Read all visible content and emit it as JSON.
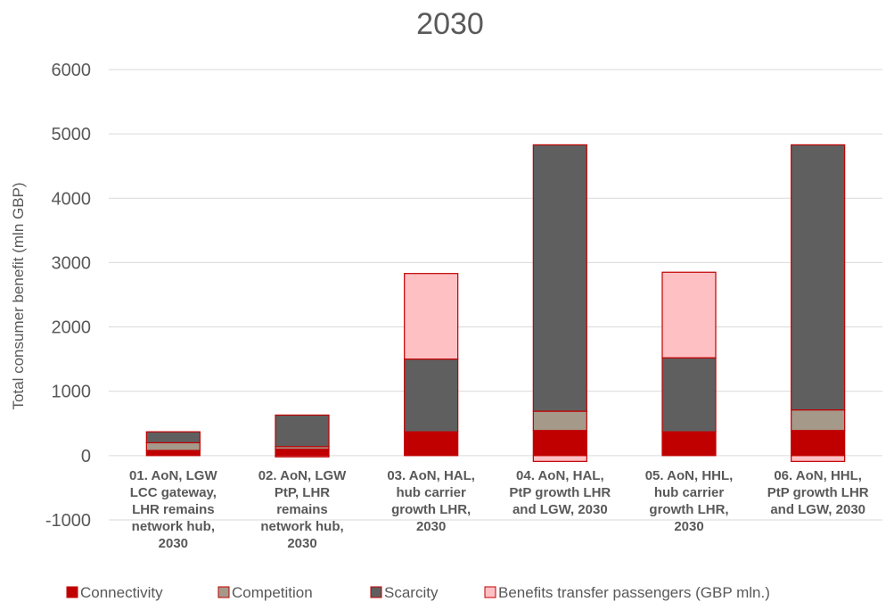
{
  "chart_data": {
    "type": "bar",
    "stacked": true,
    "title": "2030",
    "ylabel": "Total consumer benefit (mln GBP)",
    "xlabel": "",
    "ylim": [
      -1000,
      6000
    ],
    "yticks": [
      -1000,
      0,
      1000,
      2000,
      3000,
      4000,
      5000,
      6000
    ],
    "grid": true,
    "legend_position": "bottom",
    "categories": [
      [
        "01. AoN, LGW",
        "LCC gateway,",
        "LHR remains",
        "network hub,",
        "2030"
      ],
      [
        "02. AoN, LGW",
        "PtP, LHR",
        "remains",
        "network hub,",
        "2030"
      ],
      [
        "03. AoN, HAL,",
        "hub carrier",
        "growth LHR,",
        "2030"
      ],
      [
        "04. AoN, HAL,",
        "PtP growth LHR",
        "and LGW, 2030"
      ],
      [
        "05. AoN, HHL,",
        "hub carrier",
        "growth LHR,",
        "2030"
      ],
      [
        "06. AoN, HHL,",
        "PtP growth LHR",
        "and LGW, 2030"
      ]
    ],
    "series": [
      {
        "name": "Connectivity",
        "color": "#c00000",
        "values": [
          80,
          100,
          370,
          390,
          370,
          390
        ]
      },
      {
        "name": "Competition",
        "color": "#a5998a",
        "values": [
          120,
          40,
          0,
          300,
          0,
          320
        ]
      },
      {
        "name": "Scarcity",
        "color": "#5f5f5f",
        "values": [
          170,
          490,
          1130,
          4140,
          1150,
          4120
        ]
      },
      {
        "name": "Benefits transfer passengers (GBP mln.)",
        "color": "#ffc0c4",
        "values": [
          0,
          -20,
          1330,
          -90,
          1330,
          -90
        ]
      }
    ],
    "bar_outline_color": "#c00000",
    "gridline_color": "#d9d9d9"
  }
}
